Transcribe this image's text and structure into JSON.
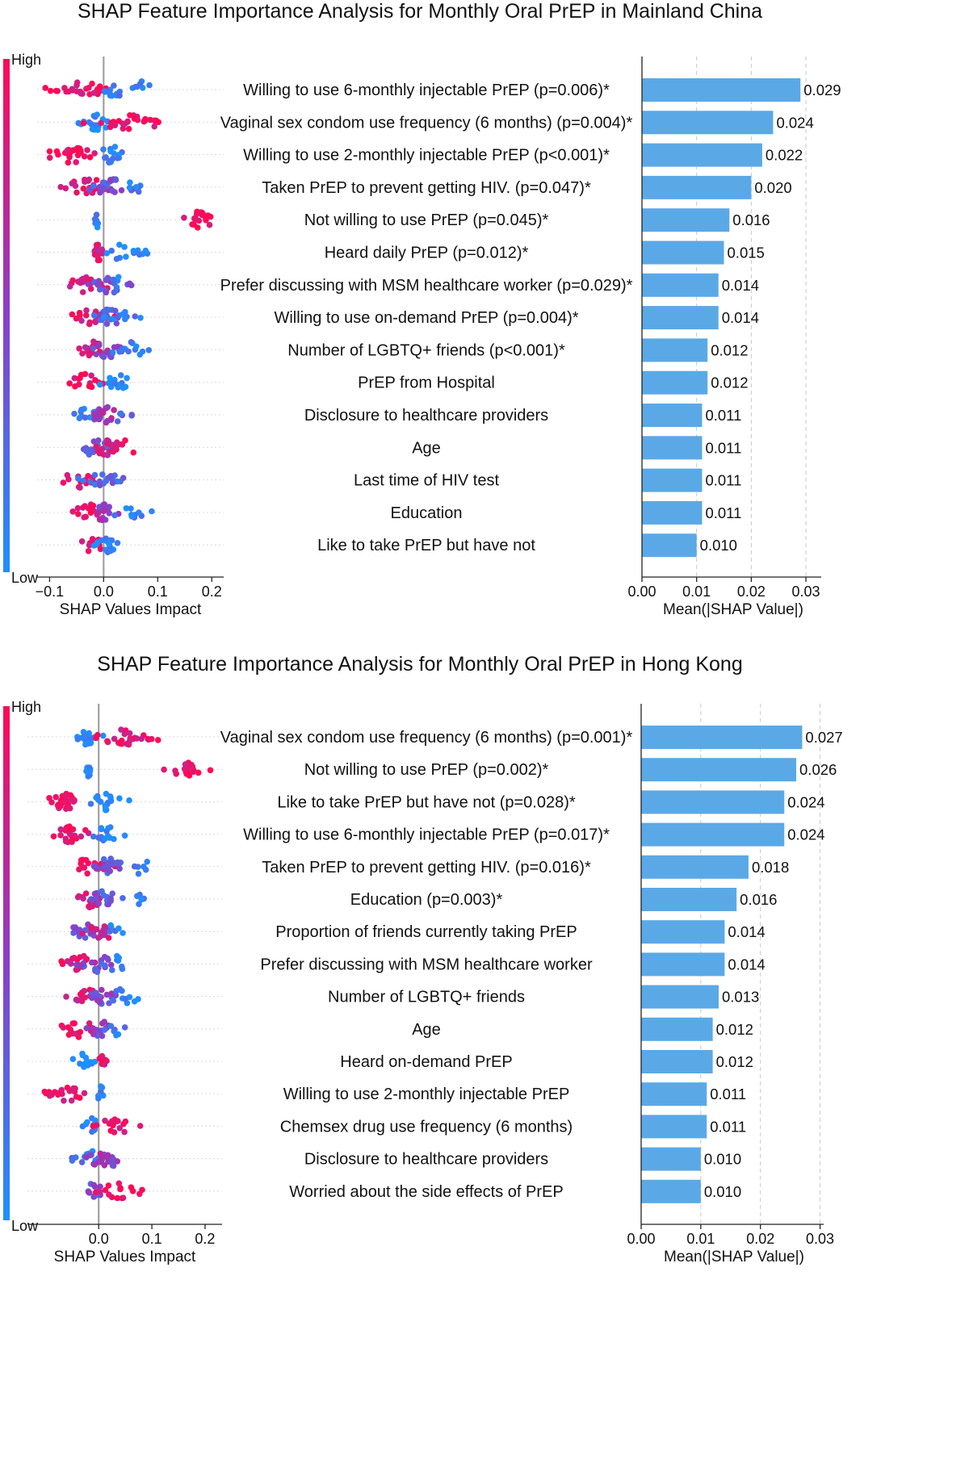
{
  "colors": {
    "bar": "#5aa9e6",
    "high": "#ff0a55",
    "low": "#1e90ff",
    "mid": "#8a3fc8"
  },
  "chart_data": [
    {
      "type": "bar",
      "orientation": "horizontal",
      "title": "SHAP Feature Importance Analysis for Monthly Oral PrEP in Mainland China",
      "categories": [
        "Willing to use 6-monthly injectable PrEP (p=0.006)*",
        "Vaginal sex condom use frequency (6 months) (p=0.004)*",
        "Willing to use 2-monthly injectable PrEP (p<0.001)*",
        "Taken PrEP to prevent getting HIV. (p=0.047)*",
        "Not willing to use PrEP (p=0.045)*",
        "Heard daily PrEP (p=0.012)*",
        "Prefer discussing with MSM healthcare worker (p=0.029)*",
        "Willing to use on-demand PrEP (p=0.004)*",
        "Number of LGBTQ+ friends (p<0.001)*",
        "PrEP from Hospital",
        "Disclosure to healthcare providers",
        "Age",
        "Last time of HIV test",
        "Education",
        "Like to take PrEP but have not"
      ],
      "values": [
        0.029,
        0.024,
        0.022,
        0.02,
        0.016,
        0.015,
        0.014,
        0.014,
        0.012,
        0.012,
        0.011,
        0.011,
        0.011,
        0.011,
        0.01
      ],
      "value_labels": [
        "0.029",
        "0.024",
        "0.022",
        "0.020",
        "0.016",
        "0.015",
        "0.014",
        "0.014",
        "0.012",
        "0.012",
        "0.011",
        "0.011",
        "0.011",
        "0.011",
        "0.010"
      ],
      "xlabel": "Mean(|SHAP Value|)",
      "xlim": [
        0,
        0.0328
      ],
      "xticks": [
        0.0,
        0.01,
        0.02,
        0.03
      ],
      "xtick_labels": [
        "0.00",
        "0.01",
        "0.02",
        "0.03"
      ],
      "grid": "vertical dashed",
      "beeswarm": {
        "xlabel": "SHAP Values Impact",
        "xlim": [
          -0.123,
          0.222
        ],
        "xticks": [
          -0.1,
          0.0,
          0.1,
          0.2
        ],
        "xtick_labels": [
          "−0.1",
          "0.0",
          "0.1",
          "0.2"
        ],
        "colorbar_high": "High",
        "colorbar_low": "Low",
        "clusters": [
          [
            {
              "c": -0.045,
              "s": 0.025,
              "n": 26,
              "col": 0.92
            },
            {
              "c": 0.025,
              "s": 0.02,
              "n": 16,
              "col": 0.1
            },
            {
              "c": 0.07,
              "s": 0.01,
              "n": 4,
              "col": 0.08
            }
          ],
          [
            {
              "c": -0.015,
              "s": 0.018,
              "n": 22,
              "col": 0.06
            },
            {
              "c": 0.04,
              "s": 0.022,
              "n": 22,
              "col": 0.9
            },
            {
              "c": 0.085,
              "s": 0.008,
              "n": 4,
              "col": 0.95
            }
          ],
          [
            {
              "c": -0.06,
              "s": 0.025,
              "n": 28,
              "col": 0.95
            },
            {
              "c": 0.015,
              "s": 0.013,
              "n": 16,
              "col": 0.05
            }
          ],
          [
            {
              "c": -0.03,
              "s": 0.024,
              "n": 26,
              "col": 0.9
            },
            {
              "c": 0.015,
              "s": 0.02,
              "n": 22,
              "col": 0.35
            },
            {
              "c": 0.06,
              "s": 0.01,
              "n": 6,
              "col": 0.1
            }
          ],
          [
            {
              "c": -0.012,
              "s": 0.003,
              "n": 9,
              "col": 0.05
            },
            {
              "c": 0.178,
              "s": 0.016,
              "n": 20,
              "col": 0.96
            }
          ],
          [
            {
              "c": -0.01,
              "s": 0.006,
              "n": 16,
              "col": 0.85
            },
            {
              "c": 0.04,
              "s": 0.02,
              "n": 14,
              "col": 0.05
            }
          ],
          [
            {
              "c": -0.025,
              "s": 0.022,
              "n": 20,
              "col": 0.85
            },
            {
              "c": 0.01,
              "s": 0.018,
              "n": 20,
              "col": 0.4
            },
            {
              "c": 0.03,
              "s": 0.01,
              "n": 6,
              "col": 0.1
            }
          ],
          [
            {
              "c": -0.02,
              "s": 0.02,
              "n": 20,
              "col": 0.85
            },
            {
              "c": 0.01,
              "s": 0.016,
              "n": 18,
              "col": 0.3
            },
            {
              "c": 0.035,
              "s": 0.012,
              "n": 8,
              "col": 0.05
            }
          ],
          [
            {
              "c": -0.015,
              "s": 0.015,
              "n": 16,
              "col": 0.8
            },
            {
              "c": 0.005,
              "s": 0.015,
              "n": 16,
              "col": 0.45
            },
            {
              "c": 0.045,
              "s": 0.018,
              "n": 12,
              "col": 0.05
            }
          ],
          [
            {
              "c": -0.03,
              "s": 0.02,
              "n": 16,
              "col": 0.93
            },
            {
              "c": 0.02,
              "s": 0.018,
              "n": 16,
              "col": 0.05
            }
          ],
          [
            {
              "c": -0.025,
              "s": 0.015,
              "n": 14,
              "col": 0.08
            },
            {
              "c": 0.005,
              "s": 0.013,
              "n": 16,
              "col": 0.6
            },
            {
              "c": 0.025,
              "s": 0.01,
              "n": 6,
              "col": 0.2
            }
          ],
          [
            {
              "c": -0.02,
              "s": 0.017,
              "n": 16,
              "col": 0.35
            },
            {
              "c": 0.01,
              "s": 0.018,
              "n": 18,
              "col": 0.8
            },
            {
              "c": 0.045,
              "s": 0.012,
              "n": 5,
              "col": 0.95
            }
          ],
          [
            {
              "c": -0.045,
              "s": 0.02,
              "n": 14,
              "col": 0.9
            },
            {
              "c": 0.005,
              "s": 0.018,
              "n": 20,
              "col": 0.25
            }
          ],
          [
            {
              "c": -0.03,
              "s": 0.02,
              "n": 16,
              "col": 0.9
            },
            {
              "c": 0.0,
              "s": 0.012,
              "n": 16,
              "col": 0.55
            },
            {
              "c": 0.045,
              "s": 0.015,
              "n": 10,
              "col": 0.05
            }
          ],
          [
            {
              "c": -0.02,
              "s": 0.012,
              "n": 12,
              "col": 0.92
            },
            {
              "c": 0.01,
              "s": 0.013,
              "n": 16,
              "col": 0.05
            }
          ]
        ]
      }
    },
    {
      "type": "bar",
      "orientation": "horizontal",
      "title": "SHAP Feature Importance Analysis for Monthly Oral PrEP in Hong Kong",
      "categories": [
        "Vaginal sex condom use frequency (6 months) (p=0.001)*",
        "Not willing to use PrEP (p=0.002)*",
        "Like to take PrEP but have not (p=0.028)*",
        "Willing to use 6-monthly injectable PrEP (p=0.017)*",
        "Taken PrEP to prevent getting HIV. (p=0.016)*",
        "Education (p=0.003)*",
        "Proportion of friends currently taking PrEP",
        "Prefer discussing with MSM healthcare worker",
        "Number of LGBTQ+ friends",
        "Age",
        "Heard on-demand PrEP",
        "Willing to use 2-monthly injectable PrEP",
        "Chemsex drug use frequency (6 months)",
        "Disclosure to healthcare providers",
        "Worried about the side effects of PrEP"
      ],
      "values": [
        0.027,
        0.026,
        0.024,
        0.024,
        0.018,
        0.016,
        0.014,
        0.014,
        0.013,
        0.012,
        0.012,
        0.011,
        0.011,
        0.01,
        0.01
      ],
      "value_labels": [
        "0.027",
        "0.026",
        "0.024",
        "0.024",
        "0.018",
        "0.016",
        "0.014",
        "0.014",
        "0.013",
        "0.012",
        "0.012",
        "0.011",
        "0.011",
        "0.010",
        "0.010"
      ],
      "xlabel": "Mean(|SHAP Value|)",
      "xlim": [
        0,
        0.0306
      ],
      "xticks": [
        0.0,
        0.01,
        0.02,
        0.03
      ],
      "xtick_labels": [
        "0.00",
        "0.01",
        "0.02",
        "0.03"
      ],
      "grid": "vertical dashed",
      "beeswarm": {
        "xlabel": "SHAP Values Impact",
        "xlim": [
          -0.134,
          0.232
        ],
        "xticks": [
          0.0,
          0.1,
          0.2
        ],
        "xtick_labels": [
          "0.0",
          "0.1",
          "0.2"
        ],
        "colorbar_high": "High",
        "colorbar_low": "Low",
        "clusters": [
          [
            {
              "c": -0.02,
              "s": 0.014,
              "n": 20,
              "col": 0.05
            },
            {
              "c": 0.045,
              "s": 0.024,
              "n": 22,
              "col": 0.9
            },
            {
              "c": 0.1,
              "s": 0.008,
              "n": 4,
              "col": 0.95
            }
          ],
          [
            {
              "c": -0.018,
              "s": 0.003,
              "n": 10,
              "col": 0.05
            },
            {
              "c": 0.17,
              "s": 0.018,
              "n": 22,
              "col": 0.96
            }
          ],
          [
            {
              "c": -0.06,
              "s": 0.022,
              "n": 26,
              "col": 0.95
            },
            {
              "c": 0.015,
              "s": 0.016,
              "n": 18,
              "col": 0.05
            }
          ],
          [
            {
              "c": -0.05,
              "s": 0.018,
              "n": 22,
              "col": 0.93
            },
            {
              "c": 0.012,
              "s": 0.014,
              "n": 18,
              "col": 0.05
            }
          ],
          [
            {
              "c": -0.015,
              "s": 0.02,
              "n": 20,
              "col": 0.88
            },
            {
              "c": 0.015,
              "s": 0.018,
              "n": 20,
              "col": 0.35
            },
            {
              "c": 0.08,
              "s": 0.013,
              "n": 6,
              "col": 0.05
            }
          ],
          [
            {
              "c": -0.015,
              "s": 0.014,
              "n": 18,
              "col": 0.85
            },
            {
              "c": 0.01,
              "s": 0.015,
              "n": 16,
              "col": 0.35
            },
            {
              "c": 0.07,
              "s": 0.01,
              "n": 5,
              "col": 0.05
            }
          ],
          [
            {
              "c": -0.025,
              "s": 0.015,
              "n": 16,
              "col": 0.35
            },
            {
              "c": 0.005,
              "s": 0.015,
              "n": 18,
              "col": 0.75
            },
            {
              "c": 0.03,
              "s": 0.01,
              "n": 6,
              "col": 0.1
            }
          ],
          [
            {
              "c": -0.035,
              "s": 0.018,
              "n": 18,
              "col": 0.85
            },
            {
              "c": 0.0,
              "s": 0.015,
              "n": 18,
              "col": 0.4
            },
            {
              "c": 0.035,
              "s": 0.012,
              "n": 8,
              "col": 0.05
            }
          ],
          [
            {
              "c": -0.02,
              "s": 0.013,
              "n": 16,
              "col": 0.8
            },
            {
              "c": 0.01,
              "s": 0.014,
              "n": 16,
              "col": 0.45
            },
            {
              "c": 0.05,
              "s": 0.015,
              "n": 10,
              "col": 0.05
            }
          ],
          [
            {
              "c": -0.04,
              "s": 0.02,
              "n": 16,
              "col": 0.93
            },
            {
              "c": 0.0,
              "s": 0.015,
              "n": 18,
              "col": 0.45
            },
            {
              "c": 0.03,
              "s": 0.01,
              "n": 6,
              "col": 0.1
            }
          ],
          [
            {
              "c": -0.028,
              "s": 0.012,
              "n": 14,
              "col": 0.05
            },
            {
              "c": 0.008,
              "s": 0.005,
              "n": 10,
              "col": 0.95
            }
          ],
          [
            {
              "c": -0.06,
              "s": 0.02,
              "n": 22,
              "col": 0.93
            },
            {
              "c": 0.005,
              "s": 0.005,
              "n": 8,
              "col": 0.08
            }
          ],
          [
            {
              "c": -0.01,
              "s": 0.008,
              "n": 10,
              "col": 0.05
            },
            {
              "c": 0.03,
              "s": 0.018,
              "n": 16,
              "col": 0.92
            }
          ],
          [
            {
              "c": -0.02,
              "s": 0.015,
              "n": 14,
              "col": 0.1
            },
            {
              "c": 0.005,
              "s": 0.014,
              "n": 18,
              "col": 0.55
            },
            {
              "c": 0.025,
              "s": 0.008,
              "n": 5,
              "col": 0.4
            }
          ],
          [
            {
              "c": -0.01,
              "s": 0.01,
              "n": 14,
              "col": 0.4
            },
            {
              "c": 0.04,
              "s": 0.02,
              "n": 16,
              "col": 0.93
            }
          ]
        ]
      }
    }
  ]
}
